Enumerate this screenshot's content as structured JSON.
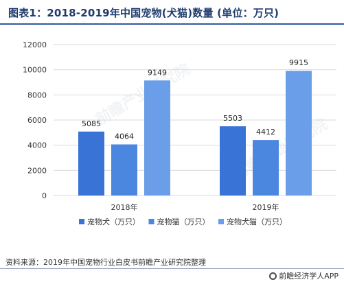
{
  "title": "图表1：2018-2019年中国宠物(犬猫)数量 (单位：万只)",
  "source": "资料来源：2019年中国宠物行业白皮书前瞻产业研究院整理",
  "brand": "前瞻经济学人APP",
  "watermark": "前瞻产业研究院",
  "chart_data": {
    "type": "bar",
    "categories": [
      "2018年",
      "2019年"
    ],
    "series": [
      {
        "name": "宠物犬（万只）",
        "values": [
          5085,
          5503
        ],
        "color": "#3a73d6"
      },
      {
        "name": "宠物猫（万只）",
        "values": [
          4064,
          4412
        ],
        "color": "#4b86df"
      },
      {
        "name": "宠物犬猫（万只）",
        "values": [
          9149,
          9915
        ],
        "color": "#6b9ee8"
      }
    ],
    "yticks": [
      0,
      2000,
      4000,
      6000,
      8000,
      10000,
      12000
    ],
    "ylim": [
      0,
      12000
    ],
    "grid": true,
    "legend_position": "bottom"
  }
}
